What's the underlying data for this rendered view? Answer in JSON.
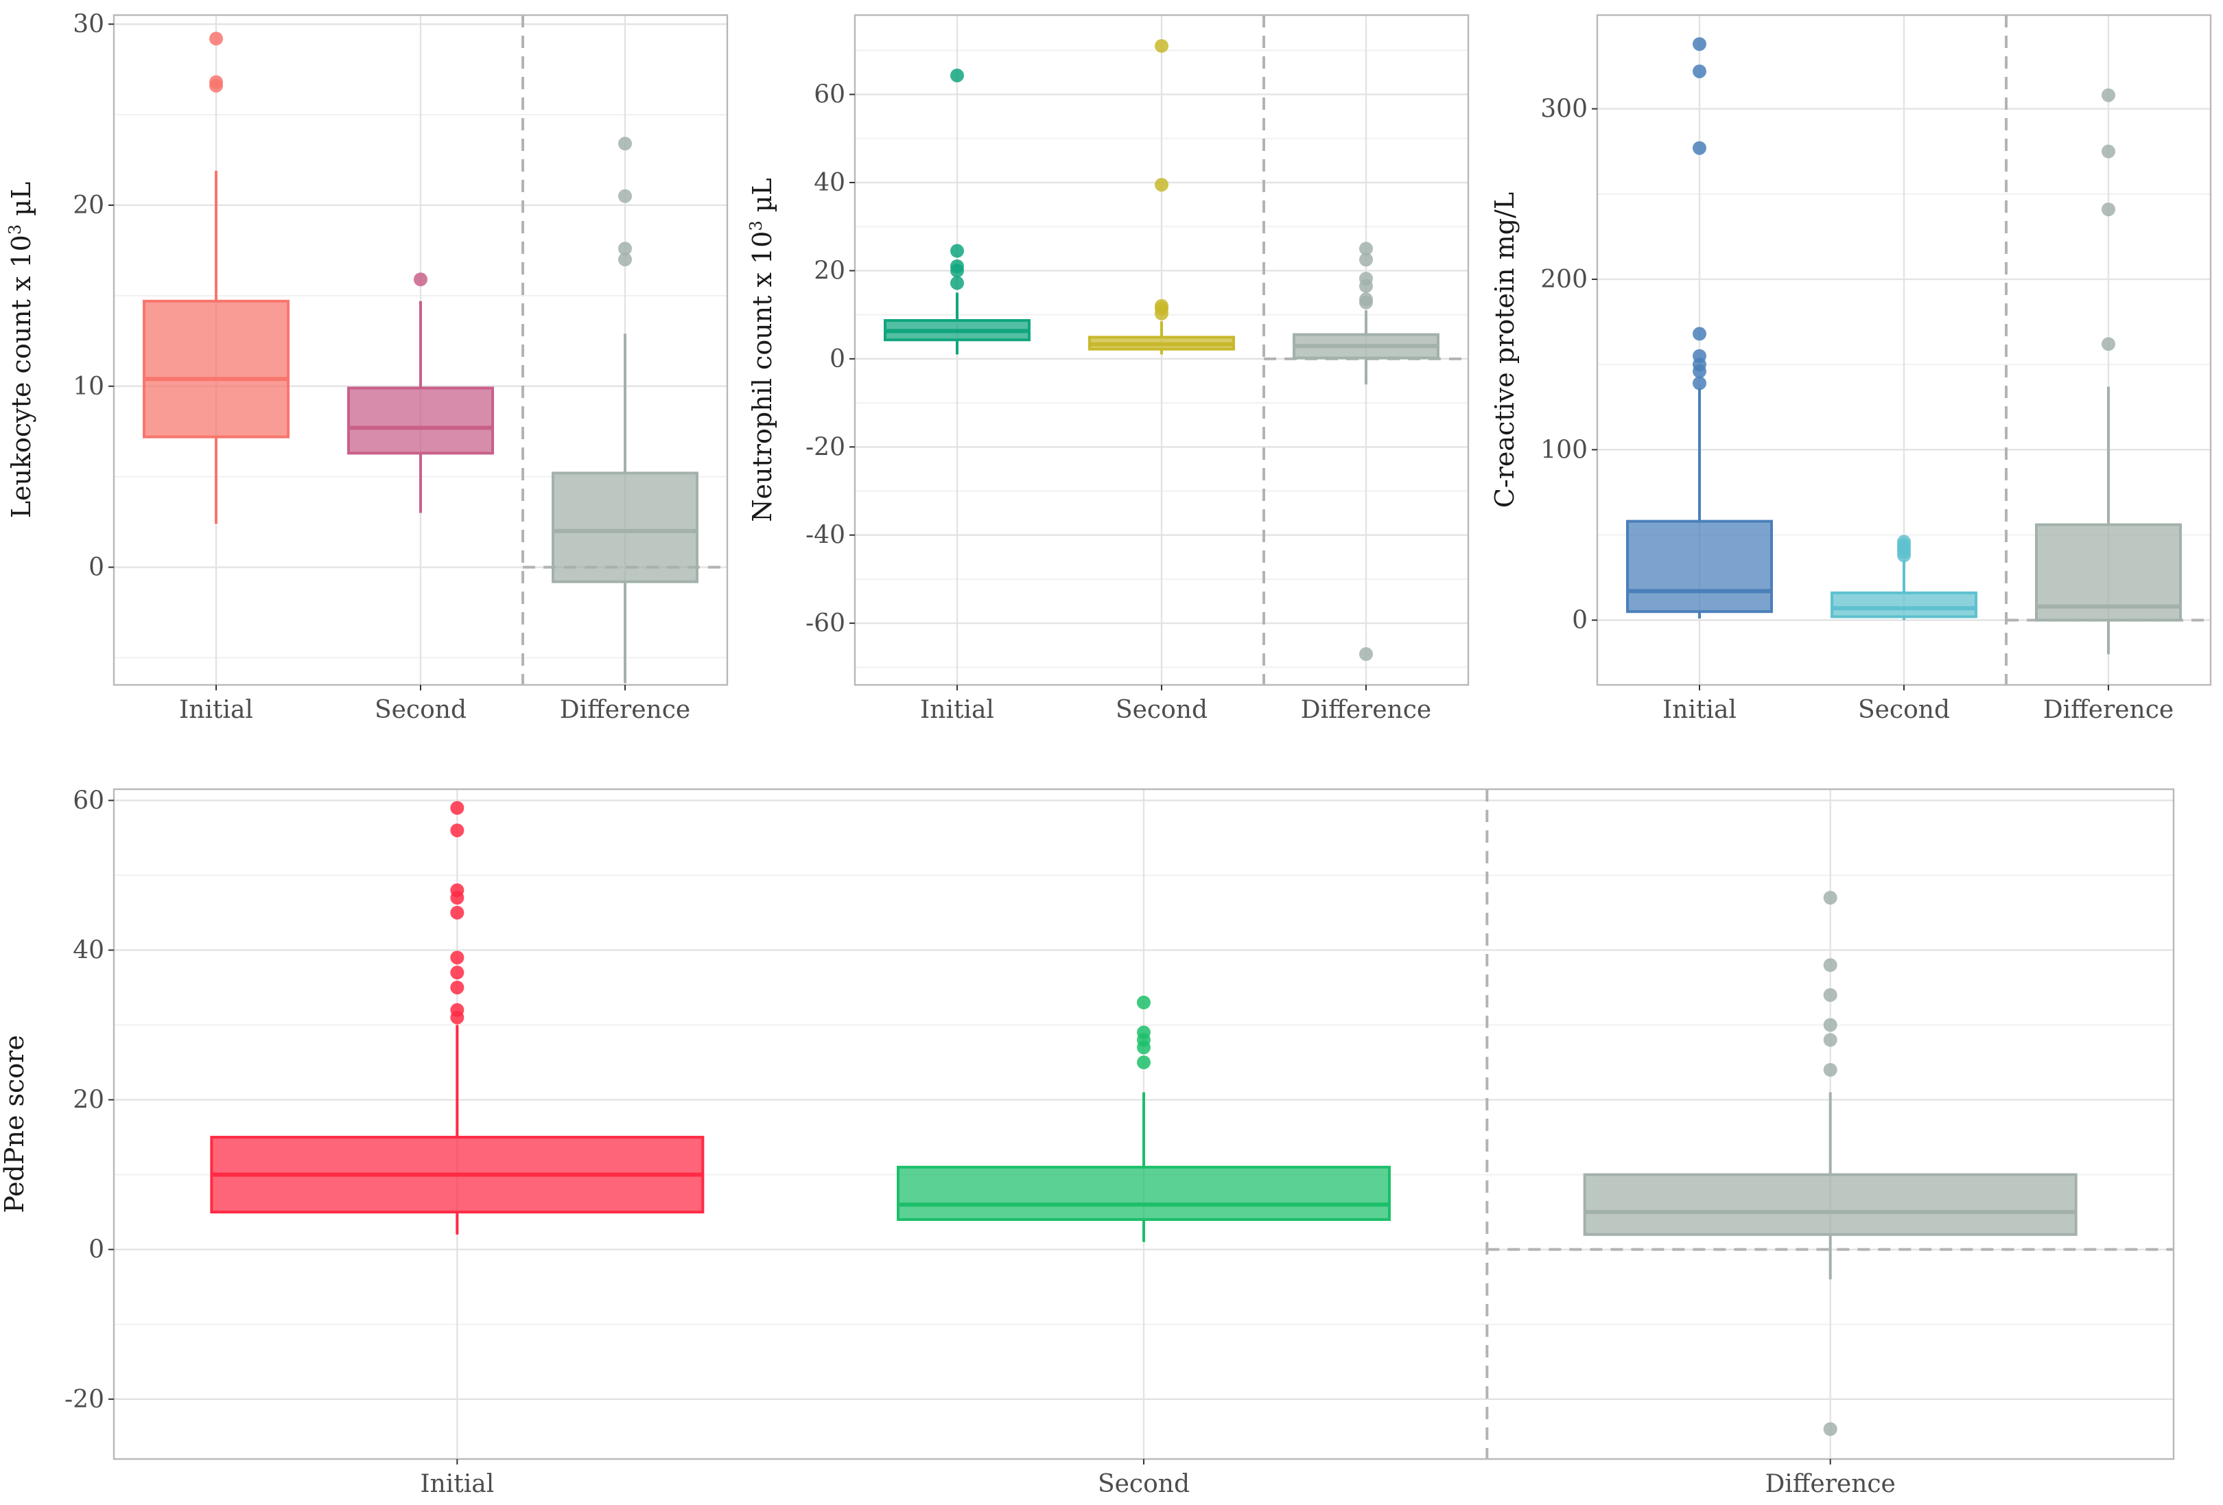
{
  "chart_data": [
    {
      "type": "box",
      "id": "leukocyte",
      "ylabel_parts": [
        "Leukocyte count x 10",
        "3",
        " µL"
      ],
      "categories": [
        "Initial",
        "Second",
        "Difference"
      ],
      "ylim": [
        -6.5,
        30.5
      ],
      "yticks": [
        0,
        10,
        20,
        30
      ],
      "minor_yticks": [
        -5,
        5,
        15,
        25
      ],
      "reference_line": 0,
      "separator_after_category": 1,
      "boxes": [
        {
          "name": "Initial",
          "q1": 7.2,
          "median": 10.4,
          "q3": 14.7,
          "whisker_low": 2.4,
          "whisker_high": 21.9,
          "outliers": [
            26.6,
            26.8,
            29.2
          ],
          "color": "#f8766d"
        },
        {
          "name": "Second",
          "q1": 6.3,
          "median": 7.7,
          "q3": 9.9,
          "whisker_low": 3.0,
          "whisker_high": 14.7,
          "outliers": [
            15.9
          ],
          "color": "#c9608a"
        },
        {
          "name": "Difference",
          "q1": -0.8,
          "median": 2.0,
          "q3": 5.2,
          "whisker_low": -6.4,
          "whisker_high": 12.9,
          "outliers": [
            17.0,
            17.6,
            20.5,
            23.4
          ],
          "color": "#a3b1ab"
        }
      ]
    },
    {
      "type": "box",
      "id": "neutrophil",
      "ylabel_parts": [
        "Neutrophil count x 10",
        "3",
        " µL"
      ],
      "categories": [
        "Initial",
        "Second",
        "Difference"
      ],
      "ylim": [
        -74,
        78
      ],
      "yticks": [
        -60,
        -40,
        -20,
        0,
        20,
        40,
        60
      ],
      "minor_yticks": [
        -70,
        -50,
        -30,
        -10,
        10,
        30,
        50,
        70
      ],
      "reference_line": 0,
      "separator_after_category": 1,
      "boxes": [
        {
          "name": "Initial",
          "q1": 4.3,
          "median": 6.3,
          "q3": 8.7,
          "whisker_low": 1.0,
          "whisker_high": 15.0,
          "outliers": [
            17.2,
            20.0,
            21.0,
            24.5,
            64.3
          ],
          "color": "#10a67e"
        },
        {
          "name": "Second",
          "q1": 2.2,
          "median": 3.3,
          "q3": 4.9,
          "whisker_low": 1.0,
          "whisker_high": 8.5,
          "outliers": [
            10.3,
            11.4,
            12.0,
            39.5,
            71.0
          ],
          "color": "#c8b82c"
        },
        {
          "name": "Difference",
          "q1": 0.2,
          "median": 2.9,
          "q3": 5.5,
          "whisker_low": -5.8,
          "whisker_high": 11.0,
          "outliers": [
            12.8,
            13.5,
            16.5,
            18.2,
            22.5,
            25.0,
            -67.0
          ],
          "color": "#a3b1ab"
        }
      ]
    },
    {
      "type": "box",
      "id": "crp",
      "ylabel_parts": [
        "C-reactive protein mg/L"
      ],
      "categories": [
        "Initial",
        "Second",
        "Difference"
      ],
      "ylim": [
        -38,
        355
      ],
      "yticks": [
        0,
        100,
        200,
        300
      ],
      "minor_yticks": [
        50,
        150,
        250
      ],
      "reference_line": 0,
      "separator_after_category": 1,
      "boxes": [
        {
          "name": "Initial",
          "q1": 5,
          "median": 17,
          "q3": 58,
          "whisker_low": 1,
          "whisker_high": 136,
          "outliers": [
            139,
            146,
            150,
            155,
            168,
            277,
            322,
            338
          ],
          "color": "#4a7fba"
        },
        {
          "name": "Second",
          "q1": 2,
          "median": 7,
          "q3": 16,
          "whisker_low": 0,
          "whisker_high": 35,
          "outliers": [
            38,
            40,
            42,
            44,
            46
          ],
          "color": "#5fc1cf"
        },
        {
          "name": "Difference",
          "q1": 0,
          "median": 8,
          "q3": 56,
          "whisker_low": -20,
          "whisker_high": 137,
          "outliers": [
            162,
            241,
            275,
            308
          ],
          "color": "#a3b1ab"
        }
      ]
    },
    {
      "type": "box",
      "id": "pedpne",
      "ylabel_parts": [
        "PedPne score"
      ],
      "categories": [
        "Initial",
        "Second",
        "Difference"
      ],
      "ylim": [
        -28,
        61.5
      ],
      "yticks": [
        -20,
        0,
        20,
        40,
        60
      ],
      "minor_yticks": [
        -10,
        10,
        30,
        50
      ],
      "reference_line": 0,
      "separator_after_category": 1,
      "boxes": [
        {
          "name": "Initial",
          "q1": 5,
          "median": 10,
          "q3": 15,
          "whisker_low": 2,
          "whisker_high": 30,
          "outliers": [
            31,
            32,
            35,
            37,
            39,
            45,
            47,
            48,
            56,
            59
          ],
          "color": "#ff2a44"
        },
        {
          "name": "Second",
          "q1": 4,
          "median": 6,
          "q3": 11,
          "whisker_low": 1,
          "whisker_high": 21,
          "outliers": [
            25,
            27,
            28,
            29,
            33
          ],
          "color": "#1cbf6a"
        },
        {
          "name": "Difference",
          "q1": 2,
          "median": 5,
          "q3": 10,
          "whisker_low": -4,
          "whisker_high": 21,
          "outliers": [
            24,
            28,
            30,
            34,
            38,
            47,
            -24
          ],
          "color": "#a3b1ab"
        }
      ]
    }
  ]
}
